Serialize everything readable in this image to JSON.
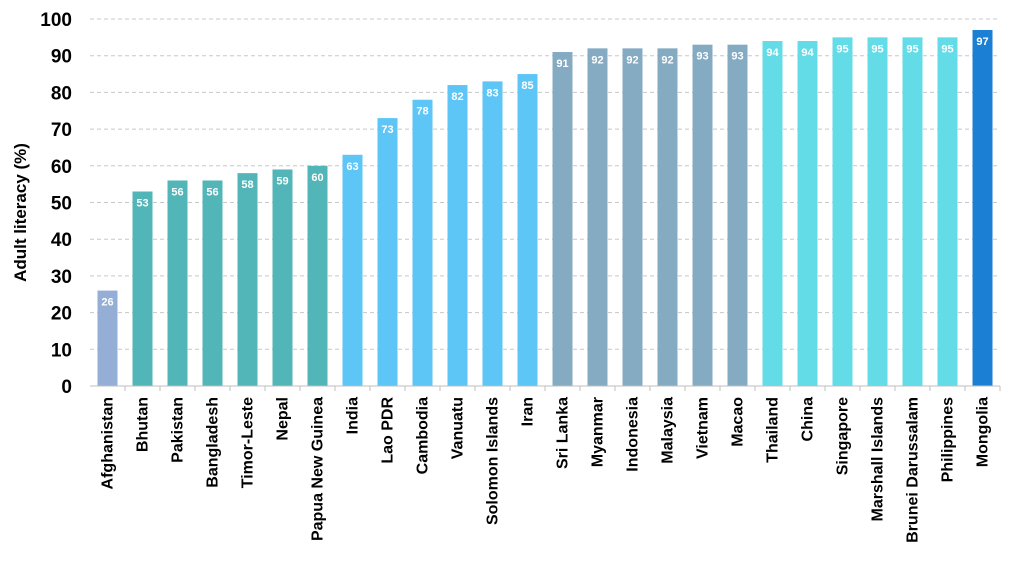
{
  "chart_data": {
    "type": "bar",
    "ylabel": "Adult literacy (%)",
    "xlabel": "",
    "ylim": [
      0,
      100
    ],
    "yticks": [
      0,
      10,
      20,
      30,
      40,
      50,
      60,
      70,
      80,
      90,
      100
    ],
    "grid": "horizontal dashed",
    "legend": "none",
    "highlight_category": "Mongolia",
    "highlight_label_color": "#1f7fd1",
    "categories": [
      "Afghanistan",
      "Bhutan",
      "Pakistan",
      "Bangladesh",
      "Timor-Leste",
      "Nepal",
      "Papua New Guinea",
      "India",
      "Lao PDR",
      "Cambodia",
      "Vanuatu",
      "Solomon Islands",
      "Iran",
      "Sri Lanka",
      "Myanmar",
      "Indonesia",
      "Malaysia",
      "Vietnam",
      "Macao",
      "Thailand",
      "China",
      "Singapore",
      "Marshall Islands",
      "Brunei Darussalam",
      "Philippines",
      "Mongolia"
    ],
    "values": [
      26,
      53,
      56,
      56,
      58,
      59,
      60,
      63,
      73,
      78,
      82,
      83,
      85,
      91,
      92,
      92,
      92,
      93,
      93,
      94,
      94,
      95,
      95,
      95,
      95,
      97
    ],
    "value_labels": [
      "26",
      "53",
      "56",
      "56",
      "58",
      "59",
      "60",
      "63",
      "73",
      "78",
      "82",
      "83",
      "85",
      "91",
      "92",
      "92",
      "92",
      "93",
      "93",
      "94",
      "94",
      "95",
      "95",
      "95",
      "95",
      "97"
    ],
    "bar_colors": [
      "#94aed6",
      "#52b5b8",
      "#52b5b8",
      "#52b5b8",
      "#52b5b8",
      "#52b5b8",
      "#52b5b8",
      "#5ec6f7",
      "#5ec6f7",
      "#5ec6f7",
      "#5ec6f7",
      "#5ec6f7",
      "#5ec6f7",
      "#84abc2",
      "#84abc2",
      "#84abc2",
      "#84abc2",
      "#84abc2",
      "#84abc2",
      "#63dce8",
      "#63dce8",
      "#63dce8",
      "#63dce8",
      "#63dce8",
      "#63dce8",
      "#1b7fd4"
    ]
  }
}
